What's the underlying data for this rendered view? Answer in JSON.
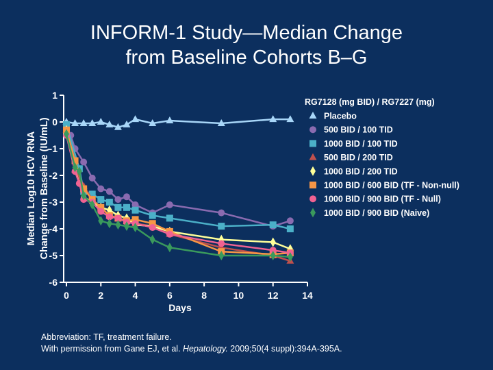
{
  "title_line1": "INFORM-1 Study—Median Change",
  "title_line2": "from Baseline Cohorts B–G",
  "footer": {
    "line1": "Abbreviation: TF, treatment failure.",
    "line2_prefix": "With permission from Gane EJ, et al. ",
    "line2_journal": "Hepatology.",
    "line2_suffix": " 2009;50(4 suppl):394A-395A."
  },
  "colors": {
    "background": "#0c2f5e",
    "axis": "#ffffff"
  },
  "chart_data": {
    "type": "line",
    "xlabel": "Days",
    "ylabel_line1": "Median Log10 HCV RNA",
    "ylabel_line2": "Change from Baseline (IU/mL)",
    "xlim": [
      0,
      14
    ],
    "ylim": [
      -6,
      1
    ],
    "xticks": [
      0,
      2,
      4,
      6,
      8,
      10,
      12,
      14
    ],
    "yticks": [
      1,
      0,
      -1,
      -2,
      -3,
      -4,
      -5,
      -6
    ],
    "grid": false,
    "legend_title": "RG7128 (mg BID) / RG7227 (mg)",
    "legend_placement": "right",
    "series": [
      {
        "name": "Placebo",
        "marker": "triangle",
        "color": "#a8d6f8",
        "x": [
          0,
          0.5,
          1,
          1.5,
          2,
          2.5,
          3,
          3.5,
          4,
          5,
          6,
          9,
          12,
          13
        ],
        "y": [
          0,
          -0.05,
          -0.05,
          -0.05,
          0,
          -0.1,
          -0.2,
          -0.1,
          0.1,
          -0.05,
          0.05,
          -0.05,
          0.1,
          0.1
        ]
      },
      {
        "name": "500 BID / 100 TID",
        "marker": "circle",
        "color": "#8a6bb0",
        "x": [
          0,
          0.25,
          0.5,
          1,
          1.5,
          2,
          2.5,
          3,
          3.5,
          4,
          5,
          6,
          9,
          12,
          13
        ],
        "y": [
          -0.3,
          -0.5,
          -1,
          -1.5,
          -2.1,
          -2.5,
          -2.6,
          -2.9,
          -2.8,
          -3.1,
          -3.4,
          -3.1,
          -3.4,
          -3.9,
          -3.7
        ]
      },
      {
        "name": "1000  BID / 100 TID",
        "marker": "square",
        "color": "#4bb0c8",
        "x": [
          0,
          0.75,
          1,
          1.5,
          2,
          2.5,
          3,
          3.5,
          4,
          5,
          6,
          9,
          12,
          13
        ],
        "y": [
          -0.1,
          -1.75,
          -2.6,
          -2.7,
          -2.9,
          -3,
          -3.2,
          -3.2,
          -3.3,
          -3.5,
          -3.6,
          -3.9,
          -3.85,
          -4
        ]
      },
      {
        "name": "500 BID / 200 TID",
        "marker": "triangle",
        "color": "#c0504d",
        "x": [
          0,
          0.5,
          1,
          1.5,
          2,
          2.5,
          3,
          3.5,
          4,
          5,
          6,
          9,
          12,
          13
        ],
        "y": [
          -0.3,
          -1.8,
          -2.4,
          -2.9,
          -3.2,
          -3.5,
          -3.6,
          -3.7,
          -3.8,
          -3.9,
          -4.2,
          -4.7,
          -5,
          -5.2
        ]
      },
      {
        "name": "1000 BID / 200 TID",
        "marker": "diamond",
        "color": "#ffff99",
        "x": [
          0,
          0.5,
          1,
          1.5,
          2,
          2.5,
          3,
          3.5,
          4,
          5,
          6,
          9,
          12,
          13
        ],
        "y": [
          -0.3,
          -1.8,
          -2.8,
          -3,
          -3.2,
          -3.3,
          -3.5,
          -3.6,
          -3.85,
          -3.9,
          -4.1,
          -4.4,
          -4.5,
          -4.75
        ]
      },
      {
        "name": "1000 BID / 600 BID (TF - Non-null)",
        "marker": "square",
        "color": "#f79646",
        "x": [
          0,
          0.5,
          1,
          1.5,
          2,
          2.5,
          3,
          3.5,
          4,
          5,
          6,
          9,
          12,
          13
        ],
        "y": [
          -0.3,
          -1.45,
          -2.5,
          -2.9,
          -3.2,
          -3.5,
          -3.6,
          -3.7,
          -3.65,
          -3.8,
          -4.1,
          -4.85,
          -4.95,
          -4.9
        ]
      },
      {
        "name": "1000 BID / 900 BID (TF - Null)",
        "marker": "circle",
        "color": "#f06292",
        "x": [
          0,
          0.5,
          0.75,
          1,
          1.5,
          2,
          2.5,
          3,
          3.5,
          4,
          5,
          6,
          9,
          12,
          13
        ],
        "y": [
          -0.5,
          -1.85,
          -2.3,
          -2.9,
          -3,
          -3.35,
          -3.55,
          -3.6,
          -3.75,
          -3.8,
          -3.95,
          -4.2,
          -4.55,
          -4.8,
          -4.9
        ]
      },
      {
        "name": "1000 BID / 900 BID (Naive)",
        "marker": "diamond",
        "color": "#3a9a5c",
        "x": [
          0,
          0.5,
          0.75,
          1,
          1.5,
          2,
          2.5,
          3,
          3.5,
          4,
          5,
          6,
          9,
          12,
          13
        ],
        "y": [
          -0.45,
          -1.7,
          -1.85,
          -2.75,
          -3.1,
          -3.7,
          -3.8,
          -3.85,
          -3.9,
          -3.95,
          -4.4,
          -4.7,
          -5,
          -5,
          -5.05
        ]
      }
    ]
  }
}
